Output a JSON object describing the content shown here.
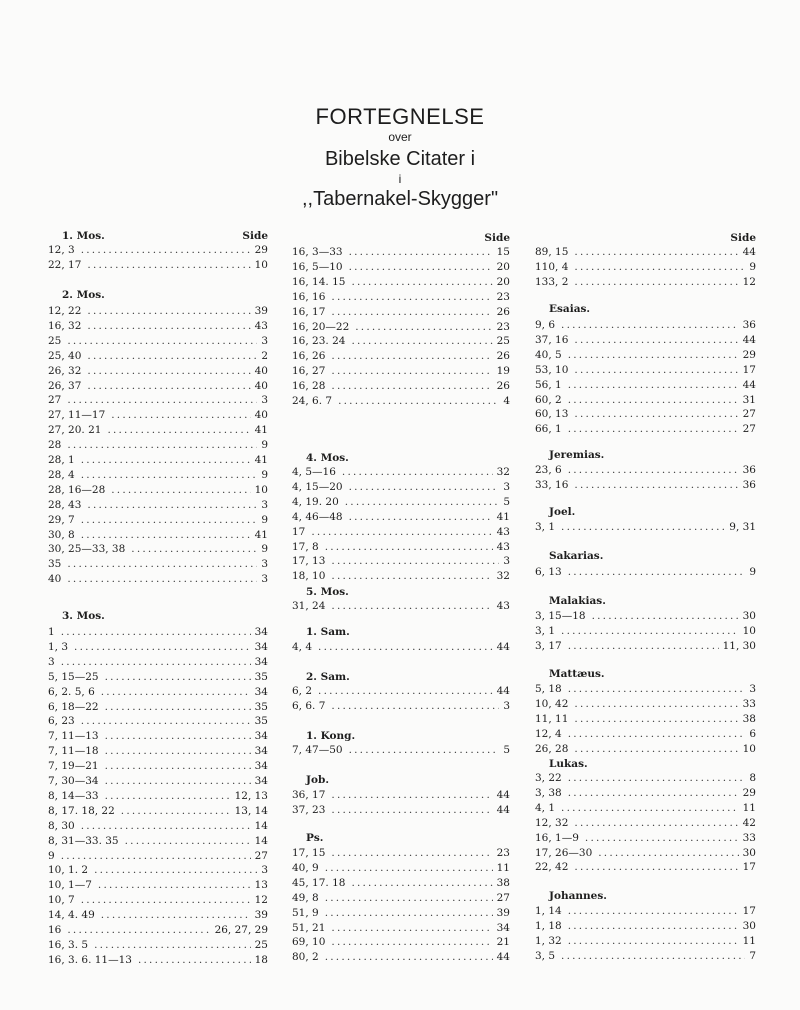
{
  "title": {
    "line1": "FORTEGNELSE",
    "line2": "over",
    "line3": "Bibelske Citater i",
    "line4": "i",
    "line5": ",,Tabernakel-Skygger\""
  },
  "side_label": "Side",
  "columns": [
    {
      "sections": [
        {
          "name": "1. Mos.",
          "entries": [
            [
              "12, 3",
              "29"
            ],
            [
              "22, 17",
              "10"
            ]
          ]
        },
        {
          "name": "2. Mos.",
          "entries": [
            [
              "12, 22",
              "39"
            ],
            [
              "16, 32",
              "43"
            ],
            [
              "25",
              "3"
            ],
            [
              "25, 40",
              "2"
            ],
            [
              "26, 32",
              "40"
            ],
            [
              "26, 37",
              "40"
            ],
            [
              "27",
              "3"
            ],
            [
              "27, 11—17",
              "40"
            ],
            [
              "27, 20. 21",
              "41"
            ],
            [
              "28",
              "9"
            ],
            [
              "28, 1",
              "41"
            ],
            [
              "28, 4",
              "9"
            ],
            [
              "28, 16—28",
              "10"
            ],
            [
              "28, 43",
              "3"
            ],
            [
              "29, 7",
              "9"
            ],
            [
              "30, 8",
              "41"
            ],
            [
              "30, 25—33, 38",
              "9"
            ],
            [
              "35",
              "3"
            ],
            [
              "40",
              "3"
            ]
          ]
        },
        {
          "name": "3. Mos.",
          "entries": [
            [
              "1",
              "34"
            ],
            [
              "1, 3",
              "34"
            ],
            [
              "3",
              "34"
            ],
            [
              "5, 15—25",
              "35"
            ],
            [
              "6, 2. 5, 6",
              "34"
            ],
            [
              "6, 18—22",
              "35"
            ],
            [
              "6, 23",
              "35"
            ],
            [
              "7, 11—13",
              "34"
            ],
            [
              "7, 11—18",
              "34"
            ],
            [
              "7, 19—21",
              "34"
            ],
            [
              "7, 30—34",
              "34"
            ],
            [
              "8, 14—33",
              "12, 13"
            ],
            [
              "8, 17. 18, 22",
              "13, 14"
            ],
            [
              "8, 30",
              "14"
            ],
            [
              "8, 31—33. 35",
              "14"
            ],
            [
              "9",
              "27"
            ],
            [
              "10, 1. 2",
              "3"
            ],
            [
              "10, 1—7",
              "13"
            ],
            [
              "10, 7",
              "12"
            ],
            [
              "14, 4. 49",
              "39"
            ],
            [
              "16",
              "26, 27, 29"
            ],
            [
              "16, 3. 5",
              "25"
            ],
            [
              "16, 3. 6. 11—13",
              "18"
            ]
          ]
        }
      ]
    },
    {
      "sections": [
        {
          "name": "",
          "entries": [
            [
              "16, 3—33",
              "15"
            ],
            [
              "16, 5—10",
              "20"
            ],
            [
              "16, 14. 15",
              "20"
            ],
            [
              "16, 16",
              "23"
            ],
            [
              "16, 17",
              "26"
            ],
            [
              "16, 20—22",
              "23"
            ],
            [
              "16, 23. 24",
              "25"
            ],
            [
              "16, 26",
              "26"
            ],
            [
              "16, 27",
              "19"
            ],
            [
              "16, 28",
              "26"
            ],
            [
              "24, 6. 7",
              "4"
            ]
          ]
        },
        {
          "name": "4. Mos.",
          "entries": [
            [
              "4, 5—16",
              "32"
            ],
            [
              "4, 15—20",
              "3"
            ],
            [
              "4, 19. 20",
              "5"
            ],
            [
              "4, 46—48",
              "41"
            ],
            [
              "17",
              "43"
            ],
            [
              "17, 8",
              "43"
            ],
            [
              "17, 13",
              "3"
            ],
            [
              "18, 10",
              "32"
            ]
          ]
        },
        {
          "name": "5. Mos.",
          "entries": [
            [
              "31, 24",
              "43"
            ]
          ]
        },
        {
          "name": "1. Sam.",
          "entries": [
            [
              "4, 4",
              "44"
            ]
          ]
        },
        {
          "name": "2. Sam.",
          "entries": [
            [
              "6, 2",
              "44"
            ],
            [
              "6, 6. 7",
              "3"
            ]
          ]
        },
        {
          "name": "1. Kong.",
          "entries": [
            [
              "7, 47—50",
              "5"
            ]
          ]
        },
        {
          "name": "Job.",
          "entries": [
            [
              "36, 17",
              "44"
            ],
            [
              "37, 23",
              "44"
            ]
          ]
        },
        {
          "name": "Ps.",
          "entries": [
            [
              "17, 15",
              "23"
            ],
            [
              "40, 9",
              "11"
            ],
            [
              "45, 17. 18",
              "38"
            ],
            [
              "49, 8",
              "27"
            ],
            [
              "51, 9",
              "39"
            ],
            [
              "51, 21",
              "34"
            ],
            [
              "69, 10",
              "21"
            ],
            [
              "80, 2",
              "44"
            ]
          ]
        }
      ]
    },
    {
      "sections": [
        {
          "name": "",
          "entries": [
            [
              "89, 15",
              "44"
            ],
            [
              "110, 4",
              "9"
            ],
            [
              "133, 2",
              "12"
            ]
          ]
        },
        {
          "name": "Esaias.",
          "entries": [
            [
              "9, 6",
              "36"
            ],
            [
              "37, 16",
              "44"
            ],
            [
              "40, 5",
              "29"
            ],
            [
              "53, 10",
              "17"
            ],
            [
              "56, 1",
              "44"
            ],
            [
              "60, 2",
              "31"
            ],
            [
              "60, 13",
              "27"
            ],
            [
              "66, 1",
              "27"
            ]
          ]
        },
        {
          "name": "Jeremias.",
          "entries": [
            [
              "23, 6",
              "36"
            ],
            [
              "33, 16",
              "36"
            ]
          ]
        },
        {
          "name": "Joel.",
          "entries": [
            [
              "3, 1",
              "9, 31"
            ]
          ]
        },
        {
          "name": "Sakarias.",
          "entries": [
            [
              "6, 13",
              "9"
            ]
          ]
        },
        {
          "name": "Malakias.",
          "entries": [
            [
              "3, 15—18",
              "30"
            ],
            [
              "3, 1",
              "10"
            ],
            [
              "3, 17",
              "11, 30"
            ]
          ]
        },
        {
          "name": "Mattæus.",
          "entries": [
            [
              "5, 18",
              "3"
            ],
            [
              "10, 42",
              "33"
            ],
            [
              "11, 11",
              "38"
            ],
            [
              "12, 4",
              "6"
            ],
            [
              "26, 28",
              "10"
            ]
          ]
        },
        {
          "name": "Lukas.",
          "entries": [
            [
              "3, 22",
              "8"
            ],
            [
              "3, 38",
              "29"
            ],
            [
              "4, 1",
              "11"
            ],
            [
              "12, 32",
              "42"
            ],
            [
              "16, 1—9",
              "33"
            ],
            [
              "17, 26—30",
              "30"
            ],
            [
              "22, 42",
              "17"
            ]
          ]
        },
        {
          "name": "Johannes.",
          "entries": [
            [
              "1, 14",
              "17"
            ],
            [
              "1, 18",
              "30"
            ],
            [
              "1, 32",
              "11"
            ],
            [
              "3, 5",
              "7"
            ]
          ]
        }
      ]
    }
  ]
}
